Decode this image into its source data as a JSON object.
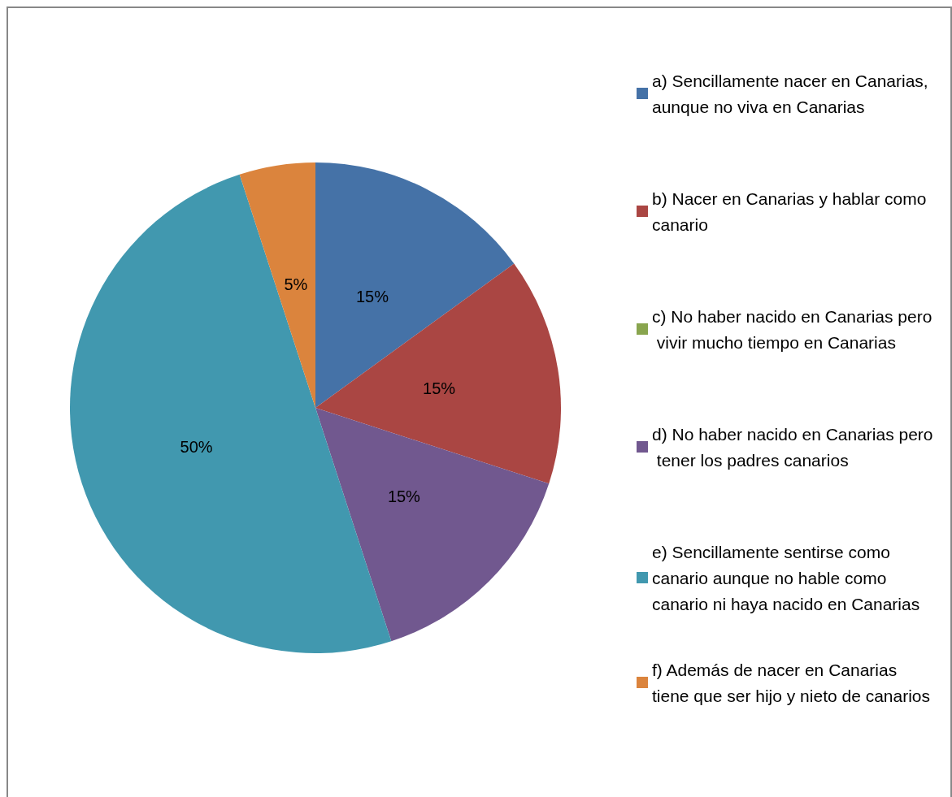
{
  "chart_data": {
    "type": "pie",
    "categories": [
      "a) Sencillamente nacer en Canarias, aunque no viva en Canarias",
      "b) Nacer en Canarias y hablar como canario",
      "c) No haber nacido en Canarias pero vivir mucho tiempo en Canarias",
      "d) No haber nacido en Canarias pero tener los padres canarios",
      "e) Sencillamente sentirse como canario aunque no hable como canario ni haya nacido en Canarias",
      "f) Además de nacer en Canarias tiene que ser hijo y nieto de canarios"
    ],
    "values": [
      15,
      15,
      0,
      15,
      50,
      5
    ],
    "colors": [
      "#4572a7",
      "#aa4643",
      "#89a54e",
      "#71588f",
      "#4198af",
      "#db843d"
    ],
    "value_labels": [
      "15%",
      "15%",
      null,
      "15%",
      "50%",
      "5%"
    ],
    "legend": "right"
  }
}
